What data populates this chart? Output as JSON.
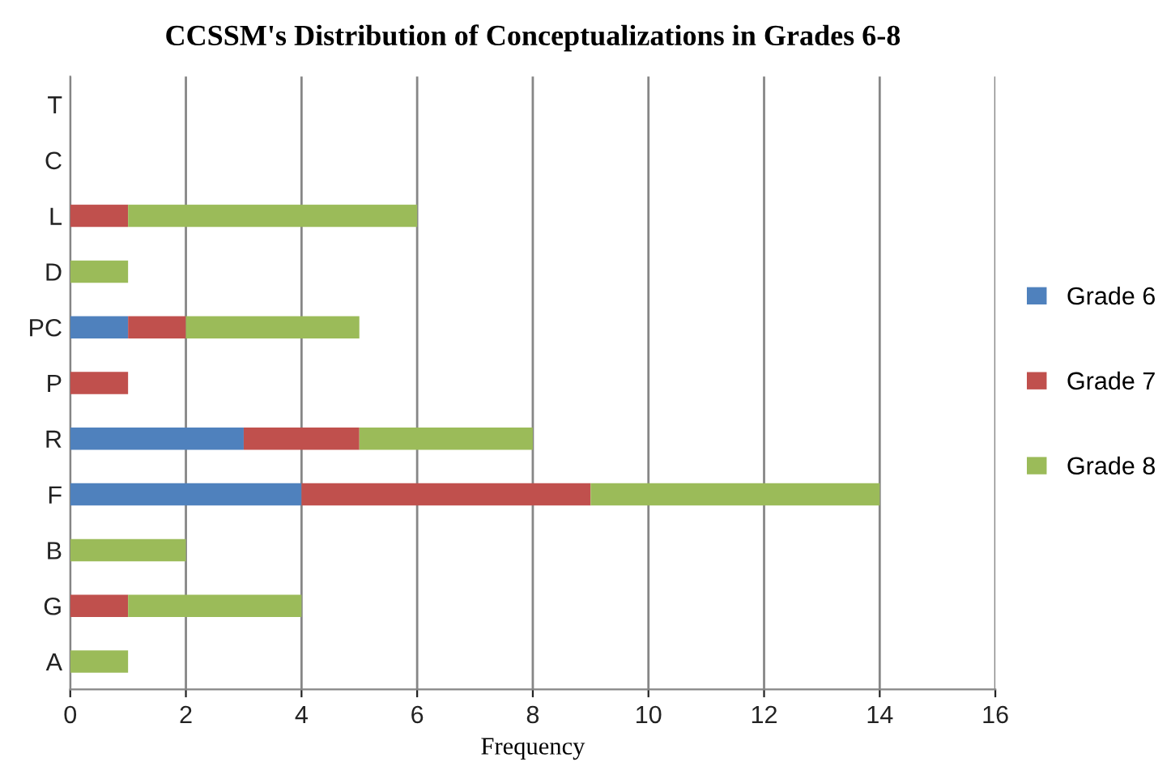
{
  "chart_data": {
    "type": "bar",
    "orientation": "horizontal",
    "stacked": true,
    "title": "CCSSM's Distribution of Conceptualizations in Grades 6-8",
    "xlabel": "Frequency",
    "categories": [
      "T",
      "C",
      "L",
      "D",
      "PC",
      "P",
      "R",
      "F",
      "B",
      "G",
      "A"
    ],
    "series": [
      {
        "name": "Grade 6",
        "color": "#4f81bd",
        "values": [
          0,
          0,
          0,
          0,
          1,
          0,
          3,
          4,
          0,
          0,
          0
        ]
      },
      {
        "name": "Grade 7",
        "color": "#c0504d",
        "values": [
          0,
          0,
          1,
          0,
          1,
          1,
          2,
          5,
          0,
          1,
          0
        ]
      },
      {
        "name": "Grade 8",
        "color": "#9bbb59",
        "values": [
          0,
          0,
          5,
          1,
          3,
          0,
          3,
          5,
          2,
          3,
          1
        ]
      }
    ],
    "xlim": [
      0,
      16
    ],
    "xticks": [
      0,
      2,
      4,
      6,
      8,
      10,
      12,
      14,
      16
    ],
    "grid": "x",
    "legend": "right"
  }
}
